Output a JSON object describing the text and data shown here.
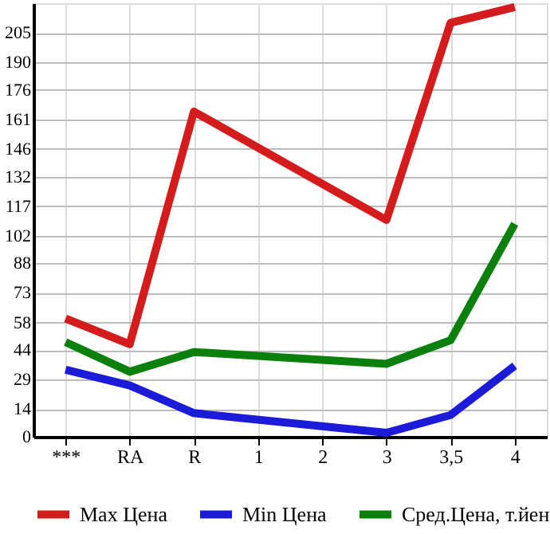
{
  "chart_data": {
    "type": "line",
    "categories": [
      "***",
      "RA",
      "R",
      "1",
      "2",
      "3",
      "3,5",
      "4"
    ],
    "series": [
      {
        "name": "Max Цена",
        "color": "#d41c1c",
        "values": [
          60,
          47,
          165,
          null,
          null,
          110,
          210,
          218
        ]
      },
      {
        "name": "Min Цена",
        "color": "#1c1cd8",
        "values": [
          34,
          26,
          12,
          null,
          null,
          2,
          11,
          36
        ]
      },
      {
        "name": "Сред.Цена, т.йен",
        "color": "#0c800c",
        "values": [
          48,
          33,
          43,
          null,
          null,
          37,
          49,
          108
        ]
      }
    ],
    "ylim": [
      0,
      220
    ],
    "yticks": [
      0,
      14,
      29,
      44,
      58,
      73,
      88,
      102,
      117,
      132,
      146,
      161,
      176,
      190,
      205
    ],
    "grid": true,
    "legend": "bottom",
    "marker": "none",
    "line_style": "solid"
  }
}
